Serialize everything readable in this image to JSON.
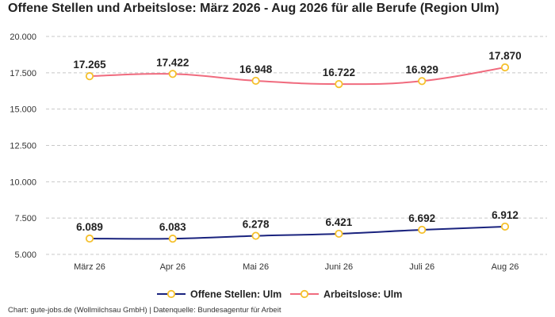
{
  "title": "Offene Stellen und Arbeitslose: März 2026 - Aug 2026 für alle Berufe (Region Ulm)",
  "source": "Chart: gute-jobs.de (Wollmilchsau GmbH) | Datenquelle: Bundesagentur für Arbeit",
  "chart_data": {
    "type": "line",
    "categories": [
      "März 26",
      "Apr 26",
      "Mai 26",
      "Juni 26",
      "Juli 26",
      "Aug 26"
    ],
    "ylim": [
      5000,
      20000
    ],
    "yticks": [
      5000,
      7500,
      10000,
      12500,
      15000,
      17500,
      20000
    ],
    "ytick_labels": [
      "5.000",
      "7.500",
      "10.000",
      "12.500",
      "15.000",
      "17.500",
      "20.000"
    ],
    "grid": true,
    "legend_position": "bottom",
    "series": [
      {
        "name": "Offene Stellen: Ulm",
        "color": "#1a237e",
        "values": [
          6089,
          6083,
          6278,
          6421,
          6692,
          6912
        ],
        "labels": [
          "6.089",
          "6.083",
          "6.278",
          "6.421",
          "6.692",
          "6.912"
        ]
      },
      {
        "name": "Arbeitslose: Ulm",
        "color": "#f06b7e",
        "values": [
          17265,
          17422,
          16948,
          16722,
          16929,
          17870
        ],
        "labels": [
          "17.265",
          "17.422",
          "16.948",
          "16.722",
          "16.929",
          "17.870"
        ]
      }
    ],
    "marker_color": "#f5c02b"
  }
}
